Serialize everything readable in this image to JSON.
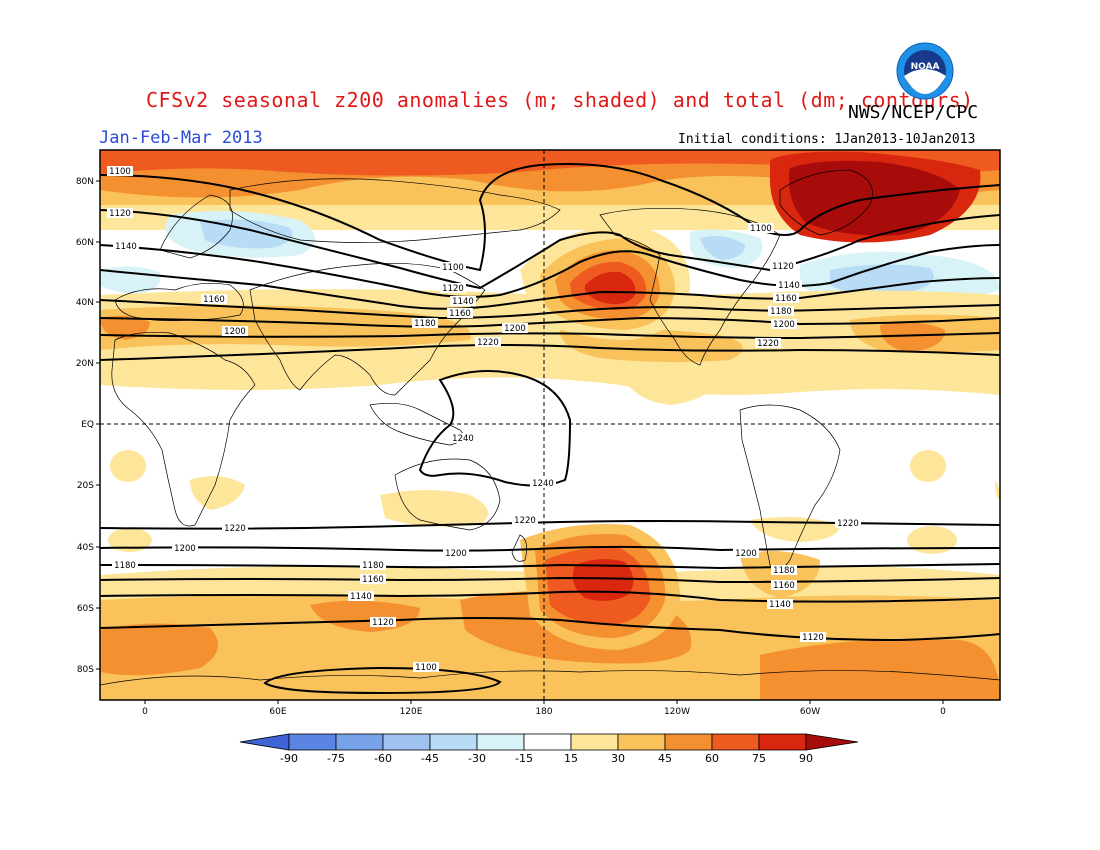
{
  "header": {
    "title": "CFSv2 seasonal z200 anomalies (m; shaded) and total (dm; contours)",
    "agency": "NWS/NCEP/CPC",
    "period": "Jan-Feb-Mar 2013",
    "initial_conditions": "Initial conditions: 1Jan2013-10Jan2013",
    "logo_text": "NOAA"
  },
  "map": {
    "lat_labels": [
      "80N",
      "60N",
      "40N",
      "20N",
      "EQ",
      "20S",
      "40S",
      "60S",
      "80S"
    ],
    "lon_labels": [
      "0",
      "60E",
      "120E",
      "180",
      "120W",
      "60W",
      "0"
    ],
    "contour_labels": {
      "c1100": "1100",
      "c1120": "1120",
      "c1140": "1140",
      "c1160": "1160",
      "c1180": "1180",
      "c1200": "1200",
      "c1220": "1220",
      "c1240": "1240"
    }
  },
  "colorbar": {
    "levels": [
      "-90",
      "-75",
      "-60",
      "-45",
      "-30",
      "-15",
      "15",
      "30",
      "45",
      "60",
      "75",
      "90"
    ],
    "colors": {
      "lt_m90": "#3f64d8",
      "m90_m75": "#5a85e3",
      "m75_m60": "#78a2e9",
      "m60_m45": "#9fc3f0",
      "m45_m30": "#b8dcf5",
      "m30_m15": "#d8f3f7",
      "m15_15": "#ffffff",
      "s15_30": "#fde69a",
      "s30_45": "#f9c25a",
      "s45_60": "#f4902f",
      "s60_75": "#ef5a20",
      "s75_90": "#d8260f",
      "gt_90": "#a80c0a"
    }
  }
}
